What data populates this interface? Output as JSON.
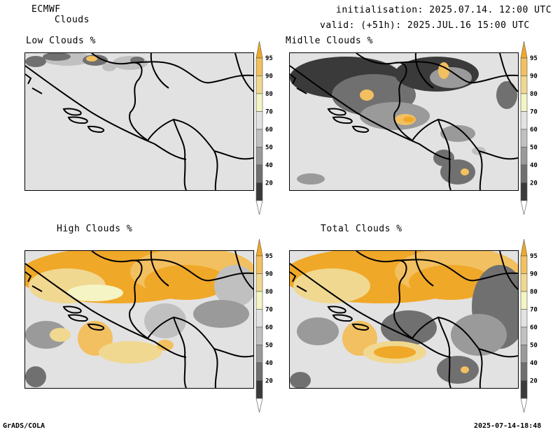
{
  "header": {
    "model": "ECMWF",
    "field": "Clouds",
    "initialisation": "initialisation: 2025.07.14. 12:00 UTC",
    "valid": "valid: (+51h): 2025.JUL.16 15:00 UTC"
  },
  "panels": [
    {
      "title": "Low Clouds %"
    },
    {
      "title": "Midlle Clouds %"
    },
    {
      "title": "High Clouds %"
    },
    {
      "title": "Total Clouds %"
    }
  ],
  "colorbar": {
    "levels": [
      "95",
      "90",
      "80",
      "70",
      "60",
      "50",
      "40",
      "20"
    ],
    "colors": [
      "#ffffff",
      "#3a3a3a",
      "#707070",
      "#9a9a9a",
      "#c0c0c0",
      "#e2e2e2",
      "#f4f4c4",
      "#f0d890",
      "#f2c060",
      "#f0a828"
    ]
  },
  "footer": {
    "left": "GrADS/COLA",
    "right": "2025-07-14-18:48"
  }
}
